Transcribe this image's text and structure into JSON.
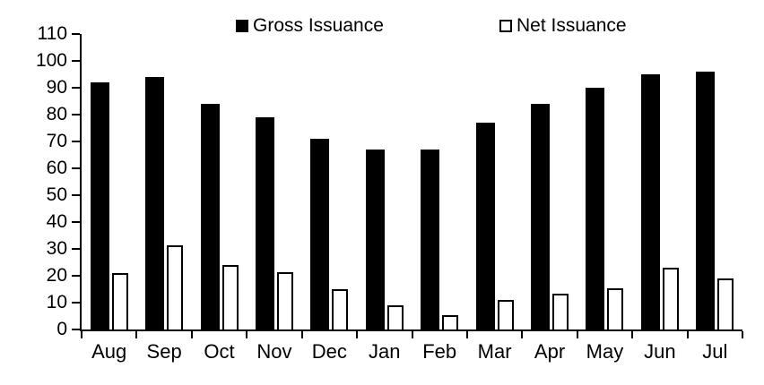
{
  "chart_data": {
    "type": "bar",
    "title": "",
    "xlabel": "",
    "ylabel": "",
    "categories": [
      "Aug",
      "Sep",
      "Oct",
      "Nov",
      "Dec",
      "Jan",
      "Feb",
      "Mar",
      "Apr",
      "May",
      "Jun",
      "Jul"
    ],
    "series": [
      {
        "name": "Gross Issuance",
        "style": "filled",
        "color": "#000000",
        "values": [
          92,
          94,
          84,
          79,
          71,
          67,
          67,
          77,
          84,
          90,
          95,
          96
        ]
      },
      {
        "name": "Net Issuance",
        "style": "outlined",
        "color": "#ffffff",
        "outline_color": "#000000",
        "values": [
          21,
          31.5,
          24,
          21.5,
          15,
          9,
          5.5,
          11,
          13.5,
          15.5,
          23,
          19
        ]
      }
    ],
    "ylim": [
      0,
      110
    ],
    "yticks": [
      110,
      100,
      90,
      80,
      70,
      60,
      50,
      40,
      30,
      20,
      10,
      0
    ],
    "ytick_step": 10,
    "grid": false,
    "legend_position": "top"
  },
  "legend": {
    "items": [
      {
        "label": "Gross Issuance",
        "swatch": "black-filled-square"
      },
      {
        "label": "Net Issuance",
        "swatch": "white-outlined-square"
      }
    ]
  },
  "colors": {
    "bar_fill": "#000000",
    "bar_outline": "#000000",
    "background": "#ffffff",
    "text": "#000000"
  }
}
